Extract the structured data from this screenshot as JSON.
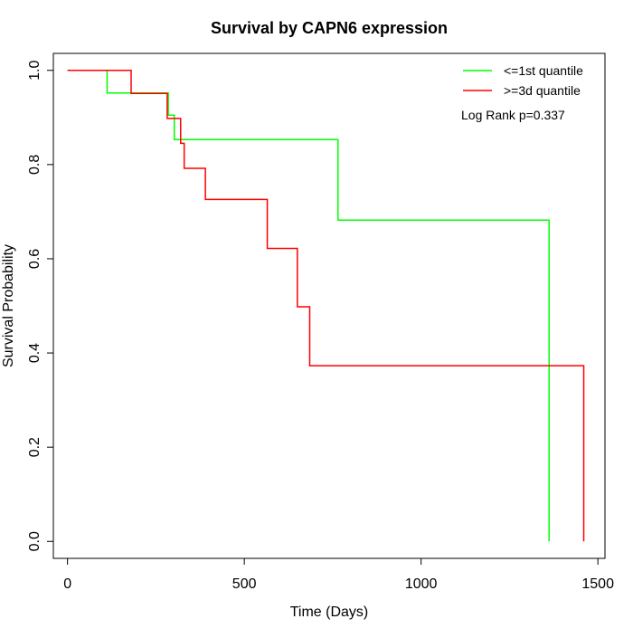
{
  "chart_data": {
    "type": "line",
    "title": "Survival by CAPN6 expression",
    "xlabel": "Time (Days)",
    "ylabel": "Survival Probability",
    "xlim": [
      -40,
      1520
    ],
    "ylim": [
      -0.036,
      1.036
    ],
    "xticks": [
      0,
      500,
      1000,
      1500
    ],
    "xtick_labels": [
      "0",
      "500",
      "1000",
      "1500"
    ],
    "yticks": [
      0.0,
      0.2,
      0.4,
      0.6,
      0.8,
      1.0
    ],
    "ytick_labels": [
      "0.0",
      "0.2",
      "0.4",
      "0.6",
      "0.8",
      "1.0"
    ],
    "grid": false,
    "legend_position": "top-right",
    "annotation": "Log Rank p=0.337",
    "series": [
      {
        "name": "<=1st quantile",
        "color": "#00ff00",
        "step": true,
        "points": [
          [
            0,
            1.0
          ],
          [
            112,
            0.952
          ],
          [
            285,
            0.905
          ],
          [
            302,
            0.853
          ],
          [
            765,
            0.682
          ],
          [
            1362,
            0.0
          ]
        ]
      },
      {
        "name": ">=3d quantile",
        "color": "#ff0000",
        "step": true,
        "points": [
          [
            0,
            1.0
          ],
          [
            180,
            0.951
          ],
          [
            282,
            0.898
          ],
          [
            320,
            0.845
          ],
          [
            330,
            0.792
          ],
          [
            390,
            0.726
          ],
          [
            565,
            0.622
          ],
          [
            650,
            0.498
          ],
          [
            685,
            0.373
          ],
          [
            1460,
            0.0
          ]
        ]
      }
    ]
  }
}
